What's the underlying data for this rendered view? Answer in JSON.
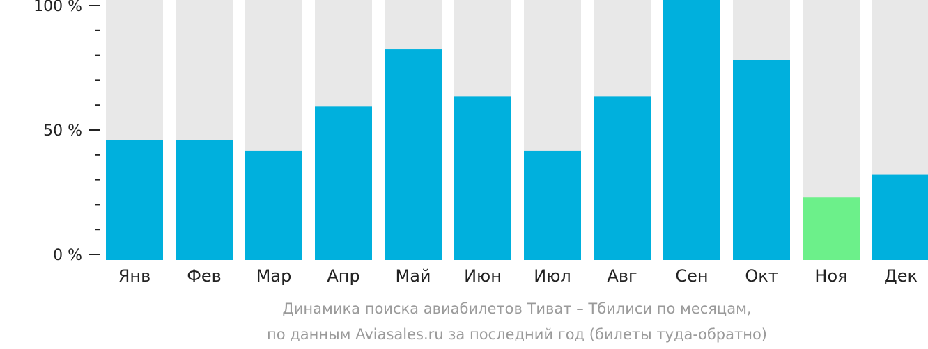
{
  "chart_data": {
    "type": "bar",
    "categories": [
      "Янв",
      "Фев",
      "Мар",
      "Апр",
      "Май",
      "Июн",
      "Июл",
      "Авг",
      "Сен",
      "Окт",
      "Ноя",
      "Дек"
    ],
    "values": [
      46,
      46,
      42,
      59,
      81,
      63,
      42,
      63,
      100,
      77,
      24,
      33
    ],
    "highlight_index": 10,
    "ylim": [
      0,
      100
    ],
    "yticks": [
      {
        "value": 100,
        "label": "100 %"
      },
      {
        "value": 50,
        "label": "50 %"
      },
      {
        "value": 0,
        "label": "0 %"
      }
    ],
    "minor_ticks_per_interval": 4,
    "caption_line1": "Динамика поиска авиабилетов Тиват – Тбилиси по месяцам,",
    "caption_line2": "по данным Aviasales.ru за последний год (билеты туда-обратно)",
    "colors": {
      "bar": "#00b0dd",
      "highlight": "#6cf08a",
      "track": "#e8e8e8",
      "axis": "#222222",
      "caption": "#9a9a9a"
    }
  }
}
